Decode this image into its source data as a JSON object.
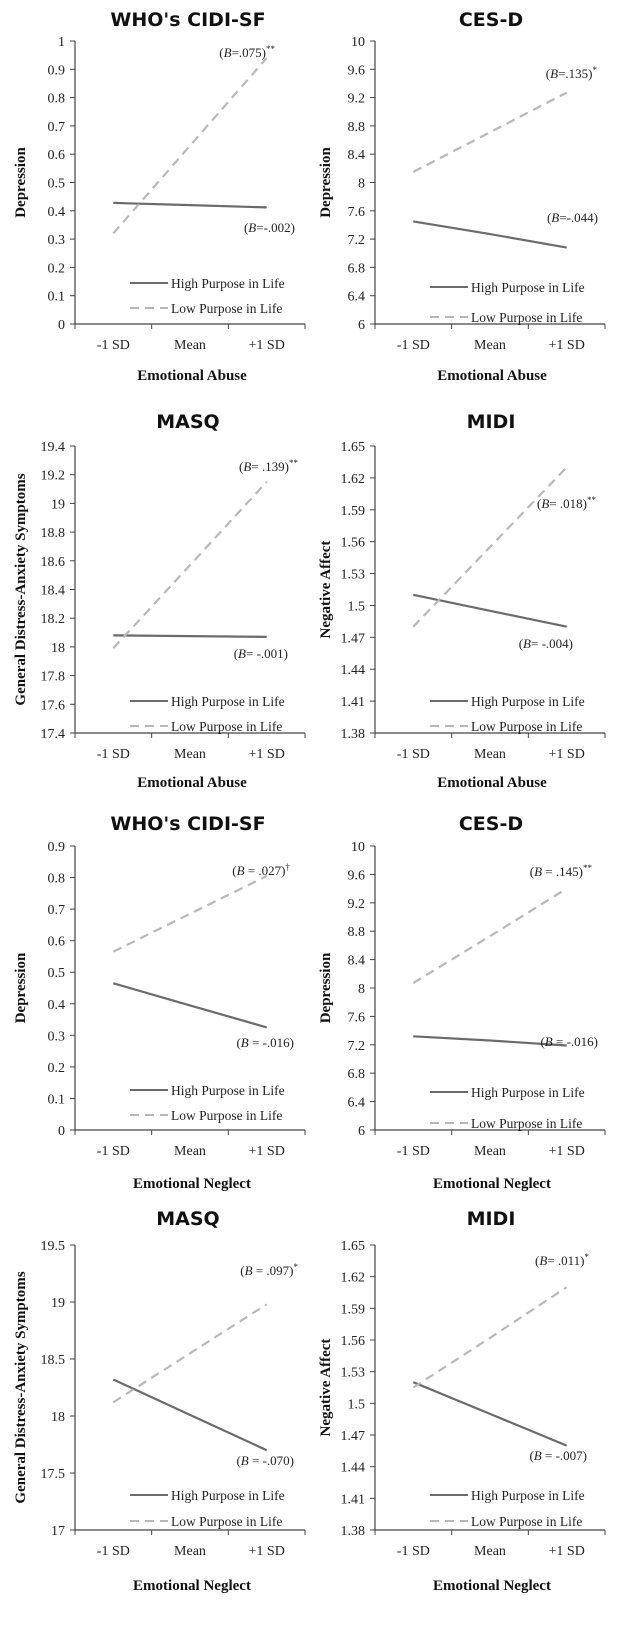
{
  "legend": {
    "high": "High Purpose in Life",
    "low": "Low Purpose in Life"
  },
  "colors": {
    "high": "#6b6b6b",
    "low": "#b8b8b8"
  },
  "chart_data": [
    {
      "type": "line",
      "title": "WHO's CIDI-SF",
      "xlabel": "Emotional Abuse",
      "ylabel": "Depression",
      "categories": [
        "-1 SD",
        "Mean",
        "+1 SD"
      ],
      "ylim": [
        0,
        1
      ],
      "yticks": [
        "0",
        "0.1",
        "0.2",
        "0.3",
        "0.4",
        "0.5",
        "0.6",
        "0.7",
        "0.8",
        "0.9",
        "1"
      ],
      "series": [
        {
          "name": "High Purpose in Life",
          "style": "solid",
          "values": [
            0.428,
            0.42,
            0.412
          ],
          "annotation": "(B=-.002)",
          "sig": ""
        },
        {
          "name": "Low Purpose in Life",
          "style": "dashed",
          "values": [
            0.32,
            0.63,
            0.94
          ],
          "annotation": "(B=.075)",
          "sig": "**"
        }
      ]
    },
    {
      "type": "line",
      "title": "CES-D",
      "xlabel": "Emotional Abuse",
      "ylabel": "Depression",
      "categories": [
        "-1 SD",
        "Mean",
        "+1 SD"
      ],
      "ylim": [
        6,
        10
      ],
      "yticks": [
        "6",
        "6.4",
        "6.8",
        "7.2",
        "7.6",
        "8",
        "8.4",
        "8.8",
        "9.2",
        "9.6",
        "10"
      ],
      "series": [
        {
          "name": "High Purpose in Life",
          "style": "solid",
          "values": [
            7.45,
            7.27,
            7.08
          ],
          "annotation": "(B=-.044)",
          "sig": ""
        },
        {
          "name": "Low Purpose in Life",
          "style": "dashed",
          "values": [
            8.15,
            8.71,
            9.27
          ],
          "annotation": "(B=.135)",
          "sig": "*"
        }
      ]
    },
    {
      "type": "line",
      "title": "MASQ",
      "xlabel": "Emotional Abuse",
      "ylabel": "General Distress-Anxiety Symptoms",
      "categories": [
        "-1 SD",
        "Mean",
        "+1 SD"
      ],
      "ylim": [
        17.4,
        19.4
      ],
      "yticks": [
        "17.4",
        "17.6",
        "17.8",
        "18",
        "18.2",
        "18.4",
        "18.6",
        "18.8",
        "19",
        "19.2",
        "19.4"
      ],
      "series": [
        {
          "name": "High Purpose in Life",
          "style": "solid",
          "values": [
            18.08,
            18.075,
            18.07
          ],
          "annotation": "(B= -.001)",
          "sig": ""
        },
        {
          "name": "Low Purpose in Life",
          "style": "dashed",
          "values": [
            17.99,
            18.57,
            19.15
          ],
          "annotation": "(B= .139)",
          "sig": "**"
        }
      ]
    },
    {
      "type": "line",
      "title": "MIDI",
      "xlabel": "Emotional Abuse",
      "ylabel": "Negative Affect",
      "categories": [
        "-1 SD",
        "Mean",
        "+1 SD"
      ],
      "ylim": [
        1.38,
        1.65
      ],
      "yticks": [
        "1.38",
        "1.41",
        "1.44",
        "1.47",
        "1.5",
        "1.53",
        "1.56",
        "1.59",
        "1.62",
        "1.65"
      ],
      "series": [
        {
          "name": "High Purpose in Life",
          "style": "solid",
          "values": [
            1.51,
            1.495,
            1.48
          ],
          "annotation": "(B= -.004)",
          "sig": ""
        },
        {
          "name": "Low Purpose in Life",
          "style": "dashed",
          "values": [
            1.48,
            1.555,
            1.63
          ],
          "annotation": "(B= .018)",
          "sig": "**"
        }
      ]
    },
    {
      "type": "line",
      "title": "WHO's CIDI-SF",
      "xlabel": "Emotional Neglect",
      "ylabel": "Depression",
      "categories": [
        "-1 SD",
        "Mean",
        "+1 SD"
      ],
      "ylim": [
        0,
        0.9
      ],
      "yticks": [
        "0",
        "0.1",
        "0.2",
        "0.3",
        "0.4",
        "0.5",
        "0.6",
        "0.7",
        "0.8",
        "0.9"
      ],
      "series": [
        {
          "name": "High Purpose in Life",
          "style": "solid",
          "values": [
            0.465,
            0.395,
            0.325
          ],
          "annotation": "(B = -.016)",
          "sig": ""
        },
        {
          "name": "Low Purpose in Life",
          "style": "dashed",
          "values": [
            0.565,
            0.685,
            0.805
          ],
          "annotation": "(B = .027)",
          "sig": "†"
        }
      ]
    },
    {
      "type": "line",
      "title": "CES-D",
      "xlabel": "Emotional Neglect",
      "ylabel": "Depression",
      "categories": [
        "-1 SD",
        "Mean",
        "+1 SD"
      ],
      "ylim": [
        6,
        10
      ],
      "yticks": [
        "6",
        "6.4",
        "6.8",
        "7.2",
        "7.6",
        "8",
        "8.4",
        "8.8",
        "9.2",
        "9.6",
        "10"
      ],
      "series": [
        {
          "name": "High Purpose in Life",
          "style": "solid",
          "values": [
            7.32,
            7.26,
            7.19
          ],
          "annotation": "(B = -.016)",
          "sig": ""
        },
        {
          "name": "Low Purpose in Life",
          "style": "dashed",
          "values": [
            8.07,
            8.73,
            9.4
          ],
          "annotation": "(B = .145)",
          "sig": "**"
        }
      ]
    },
    {
      "type": "line",
      "title": "MASQ",
      "xlabel": "Emotional Neglect",
      "ylabel": "General Distress-Anxiety Symptoms",
      "categories": [
        "-1 SD",
        "Mean",
        "+1 SD"
      ],
      "ylim": [
        17,
        19.5
      ],
      "yticks": [
        "17",
        "17.5",
        "18",
        "18.5",
        "19",
        "19.5"
      ],
      "series": [
        {
          "name": "High Purpose in Life",
          "style": "solid",
          "values": [
            18.32,
            18.01,
            17.7
          ],
          "annotation": "(B = -.070)",
          "sig": ""
        },
        {
          "name": "Low Purpose in Life",
          "style": "dashed",
          "values": [
            18.12,
            18.55,
            18.98
          ],
          "annotation": "(B = .097)",
          "sig": "*"
        }
      ]
    },
    {
      "type": "line",
      "title": "MIDI",
      "xlabel": "Emotional Neglect",
      "ylabel": "Negative Affect",
      "categories": [
        "-1 SD",
        "Mean",
        "+1 SD"
      ],
      "ylim": [
        1.38,
        1.65
      ],
      "yticks": [
        "1.38",
        "1.41",
        "1.44",
        "1.47",
        "1.5",
        "1.53",
        "1.56",
        "1.59",
        "1.62",
        "1.65"
      ],
      "series": [
        {
          "name": "High Purpose in Life",
          "style": "solid",
          "values": [
            1.52,
            1.49,
            1.46
          ],
          "annotation": "(B = -.007)",
          "sig": ""
        },
        {
          "name": "Low Purpose in Life",
          "style": "dashed",
          "values": [
            1.515,
            1.562,
            1.61
          ],
          "annotation": "(B= .011)",
          "sig": "*"
        }
      ]
    }
  ]
}
